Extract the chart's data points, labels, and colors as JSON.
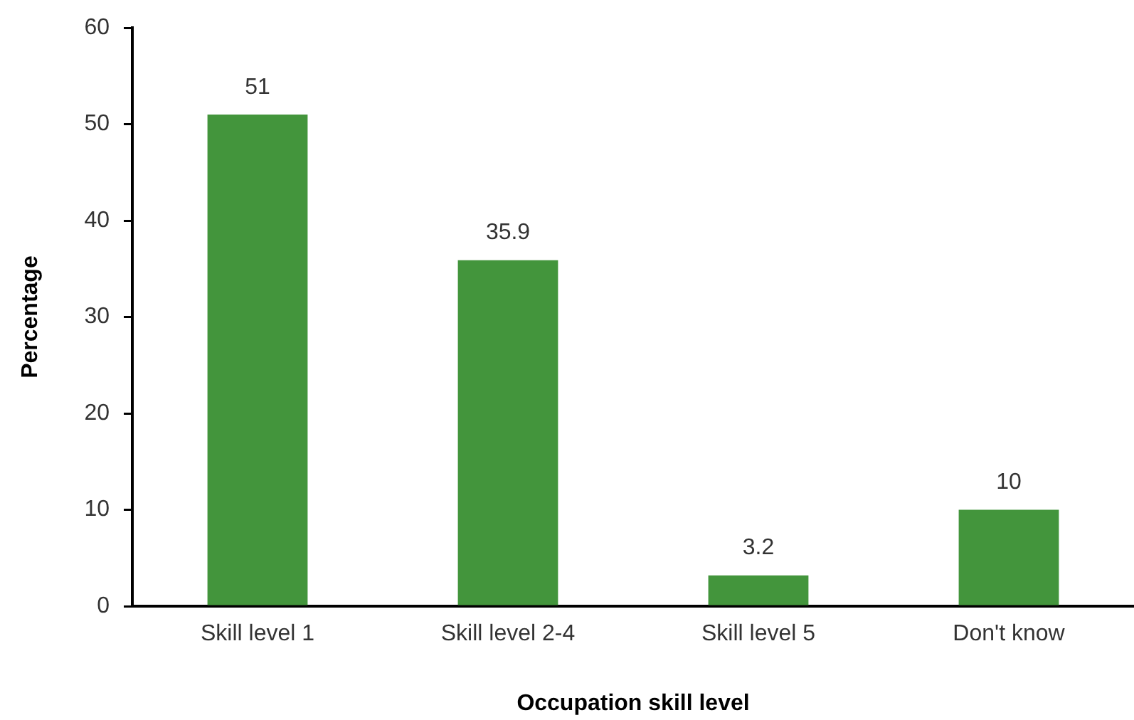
{
  "chart_data": {
    "type": "bar",
    "xlabel": "Occupation skill level",
    "ylabel": "Percentage",
    "categories": [
      "Skill level 1",
      "Skill level 2-4",
      "Skill level 5",
      "Don't know"
    ],
    "values": [
      51,
      35.9,
      3.2,
      10
    ],
    "color": "#43953c",
    "ylim": [
      0,
      60
    ],
    "yticks": [
      0,
      10,
      20,
      30,
      40,
      50,
      60
    ],
    "data_labels": true
  }
}
